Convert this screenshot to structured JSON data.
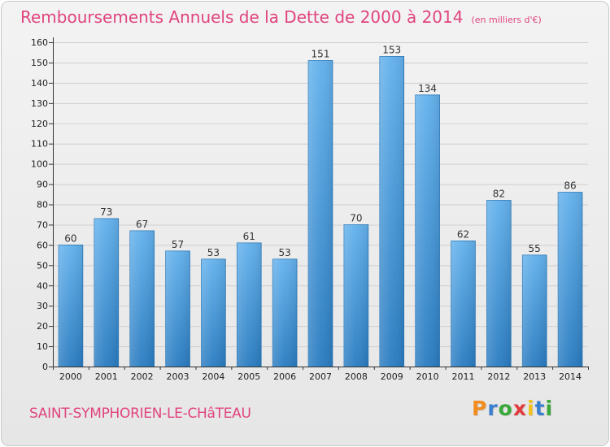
{
  "title": "Remboursements Annuels de la Dette de 2000 à 2014",
  "subtitle": "(en milliers d'€)",
  "town": "SAINT-SYMPHORIEN-LE-CHâTEAU",
  "logo": {
    "letters": [
      "P",
      "r",
      "o",
      "x",
      "i",
      "t",
      "i"
    ],
    "colors": [
      "#f28c1e",
      "#3a7fd0",
      "#38a838",
      "#e23b3b",
      "#f2c21a",
      "#3a7fd0",
      "#38a838"
    ]
  },
  "colors": {
    "accent": "#e0447f",
    "bar_top": "#63b1ec",
    "bar_bottom": "#2a7cc1",
    "bar_stroke": "#2b78b8",
    "grid": "#cfcfcf",
    "axis": "#333333"
  },
  "chart_data": {
    "type": "bar",
    "categories": [
      "2000",
      "2001",
      "2002",
      "2003",
      "2004",
      "2005",
      "2006",
      "2007",
      "2008",
      "2009",
      "2010",
      "2011",
      "2012",
      "2013",
      "2014"
    ],
    "values": [
      60,
      73,
      67,
      57,
      53,
      61,
      53,
      151,
      70,
      153,
      134,
      62,
      82,
      55,
      86
    ],
    "xlabel": "",
    "ylabel": "",
    "ylim": [
      0,
      160
    ],
    "yticks": [
      0,
      10,
      20,
      30,
      40,
      50,
      60,
      70,
      80,
      90,
      100,
      110,
      120,
      130,
      140,
      150,
      160
    ],
    "grid": true,
    "value_labels": true
  }
}
